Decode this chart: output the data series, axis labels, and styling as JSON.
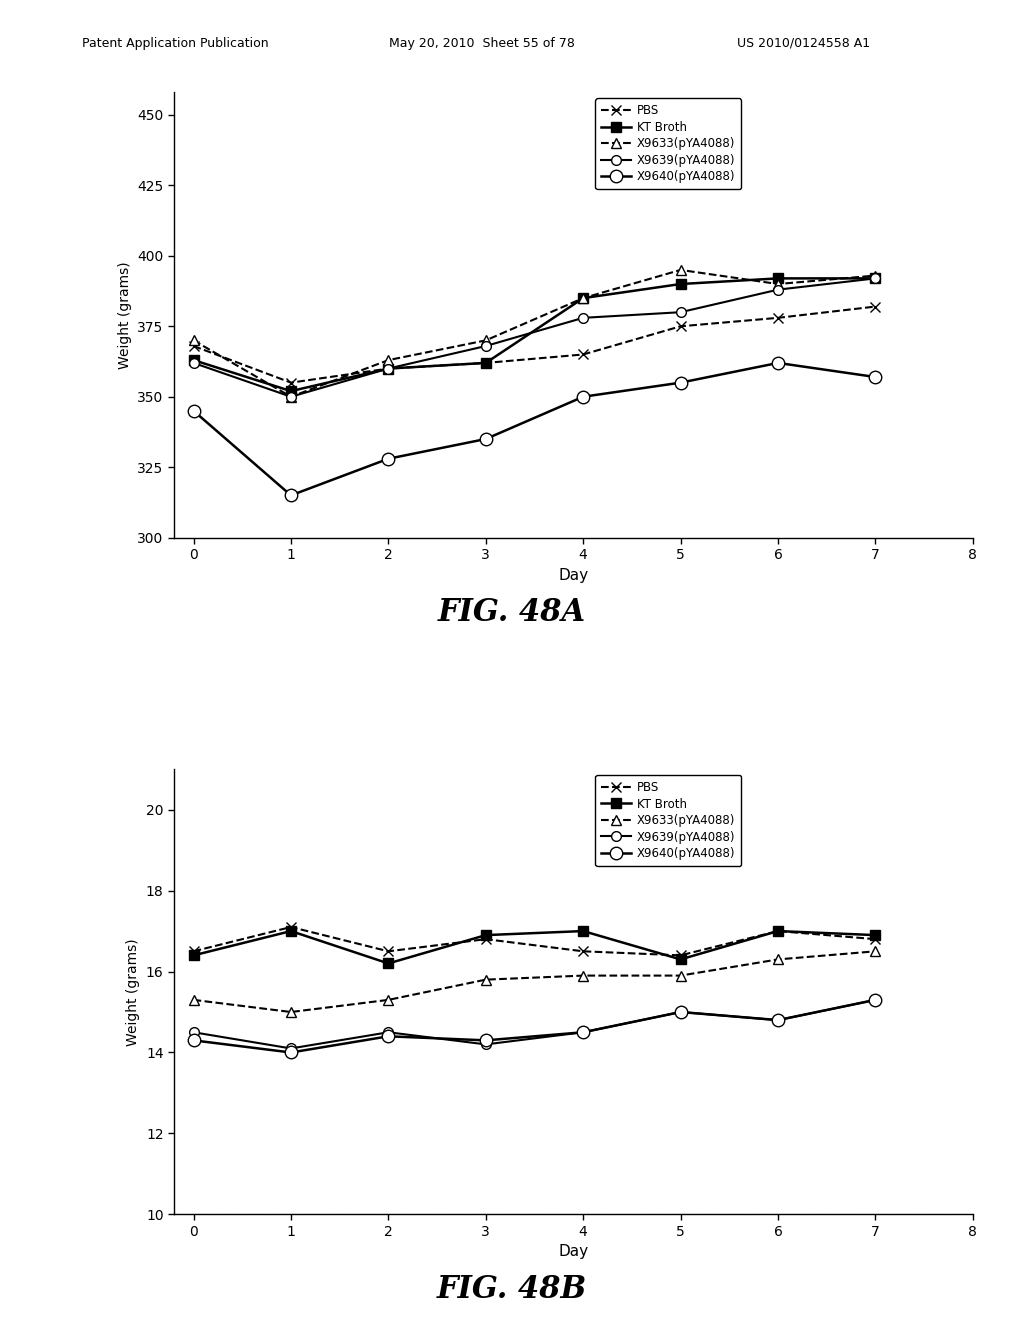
{
  "header_left": "Patent Application Publication",
  "header_mid": "May 20, 2010  Sheet 55 of 78",
  "header_right": "US 2010/0124558 A1",
  "fig_a": {
    "title": "FIG. 48A",
    "xlabel": "Day",
    "ylabel": "Weight (grams)",
    "xlim": [
      -0.2,
      8
    ],
    "ylim": [
      300,
      458
    ],
    "yticks": [
      300,
      325,
      350,
      375,
      400,
      425,
      450
    ],
    "xticks": [
      0,
      1,
      2,
      3,
      4,
      5,
      6,
      7,
      8
    ],
    "series": [
      {
        "label": "PBS",
        "x": [
          0,
          1,
          2,
          3,
          4,
          5,
          6,
          7
        ],
        "y": [
          368,
          355,
          360,
          362,
          365,
          375,
          378,
          382
        ],
        "linestyle": "--",
        "marker": "x",
        "linewidth": 1.5,
        "markersize": 7,
        "markerfacecolor": "black",
        "markeredgecolor": "black"
      },
      {
        "label": "KT Broth",
        "x": [
          0,
          1,
          2,
          3,
          4,
          5,
          6,
          7
        ],
        "y": [
          363,
          352,
          360,
          362,
          385,
          390,
          392,
          392
        ],
        "linestyle": "-",
        "marker": "s",
        "linewidth": 1.8,
        "markersize": 7,
        "markerfacecolor": "black",
        "markeredgecolor": "black"
      },
      {
        "label": "X9633(pYA4088)",
        "x": [
          0,
          1,
          2,
          3,
          4,
          5,
          6,
          7
        ],
        "y": [
          370,
          350,
          363,
          370,
          385,
          395,
          390,
          393
        ],
        "linestyle": "--",
        "marker": "^",
        "linewidth": 1.5,
        "markersize": 7,
        "markerfacecolor": "white",
        "markeredgecolor": "black"
      },
      {
        "label": "X9639(pYA4088)",
        "x": [
          0,
          1,
          2,
          3,
          4,
          5,
          6,
          7
        ],
        "y": [
          362,
          350,
          360,
          368,
          378,
          380,
          388,
          392
        ],
        "linestyle": "-",
        "marker": "o",
        "linewidth": 1.5,
        "markersize": 7,
        "markerfacecolor": "white",
        "markeredgecolor": "black"
      },
      {
        "label": "X9640(pYA4088)",
        "x": [
          0,
          1,
          2,
          3,
          4,
          5,
          6,
          7
        ],
        "y": [
          345,
          315,
          328,
          335,
          350,
          355,
          362,
          357
        ],
        "linestyle": "-",
        "marker": "o",
        "linewidth": 1.8,
        "markersize": 9,
        "markerfacecolor": "white",
        "markeredgecolor": "black"
      }
    ]
  },
  "fig_b": {
    "title": "FIG. 48B",
    "xlabel": "Day",
    "ylabel": "Weight (grams)",
    "xlim": [
      -0.2,
      8
    ],
    "ylim": [
      10,
      21
    ],
    "yticks": [
      10,
      12,
      14,
      16,
      18,
      20
    ],
    "xticks": [
      0,
      1,
      2,
      3,
      4,
      5,
      6,
      7,
      8
    ],
    "dotted_line_y": 10,
    "series": [
      {
        "label": "PBS",
        "x": [
          0,
          1,
          2,
          3,
          4,
          5,
          6,
          7
        ],
        "y": [
          16.5,
          17.1,
          16.5,
          16.8,
          16.5,
          16.4,
          17.0,
          16.8
        ],
        "linestyle": "--",
        "marker": "x",
        "linewidth": 1.5,
        "markersize": 7,
        "markerfacecolor": "black",
        "markeredgecolor": "black"
      },
      {
        "label": "KT Broth",
        "x": [
          0,
          1,
          2,
          3,
          4,
          5,
          6,
          7
        ],
        "y": [
          16.4,
          17.0,
          16.2,
          16.9,
          17.0,
          16.3,
          17.0,
          16.9
        ],
        "linestyle": "-",
        "marker": "s",
        "linewidth": 1.8,
        "markersize": 7,
        "markerfacecolor": "black",
        "markeredgecolor": "black"
      },
      {
        "label": "X9633(pYA4088)",
        "x": [
          0,
          1,
          2,
          3,
          4,
          5,
          6,
          7
        ],
        "y": [
          15.3,
          15.0,
          15.3,
          15.8,
          15.9,
          15.9,
          16.3,
          16.5
        ],
        "linestyle": "--",
        "marker": "^",
        "linewidth": 1.5,
        "markersize": 7,
        "markerfacecolor": "white",
        "markeredgecolor": "black"
      },
      {
        "label": "X9639(pYA4088)",
        "x": [
          0,
          1,
          2,
          3,
          4,
          5,
          6,
          7
        ],
        "y": [
          14.5,
          14.1,
          14.5,
          14.2,
          14.5,
          15.0,
          14.8,
          15.3
        ],
        "linestyle": "-",
        "marker": "o",
        "linewidth": 1.5,
        "markersize": 7,
        "markerfacecolor": "white",
        "markeredgecolor": "black"
      },
      {
        "label": "X9640(pYA4088)",
        "x": [
          0,
          1,
          2,
          3,
          4,
          5,
          6,
          7
        ],
        "y": [
          14.3,
          14.0,
          14.4,
          14.3,
          14.5,
          15.0,
          14.8,
          15.3
        ],
        "linestyle": "-",
        "marker": "o",
        "linewidth": 1.8,
        "markersize": 9,
        "markerfacecolor": "white",
        "markeredgecolor": "black"
      }
    ]
  }
}
